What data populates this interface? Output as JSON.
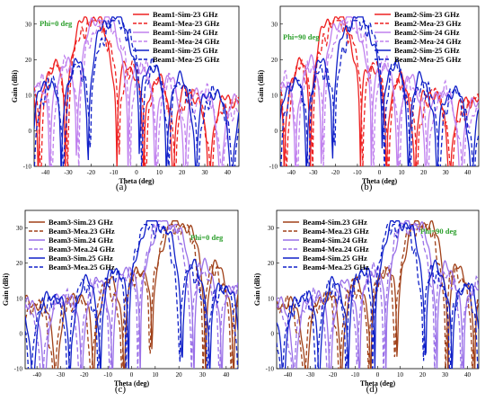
{
  "colors": {
    "sim23": "#ee2020",
    "mea23": "#ee2020",
    "sim24": "#c080ee",
    "mea24": "#c080ee",
    "sim25": "#1020c8",
    "mea25": "#1020c8",
    "sim23_c": "#a04018",
    "mea23_c": "#a04018",
    "sim24_c": "#9a70e8",
    "mea24_c": "#9a70e8",
    "annotation": "#2ea02e"
  },
  "chart_data": [
    {
      "type": "line",
      "caption": "(a)",
      "annotation": "Phi=0 deg",
      "xlabel": "Theta (deg)",
      "ylabel": "Gain (dBi)",
      "xlim": [
        -45,
        45
      ],
      "ylim": [
        -10,
        35
      ],
      "xticks": [
        "-40",
        "-30",
        "-20",
        "-10",
        "0",
        "10",
        "20",
        "30",
        "40"
      ],
      "yticks": [
        "-10",
        "0",
        "10",
        "20",
        "30"
      ],
      "legend_position": "top-right",
      "series": [
        {
          "name": "Beam1-Sim-23 GHz",
          "peak_theta": -20,
          "peak_gain": 32
        },
        {
          "name": "Beam1-Mea-23 GHz",
          "peak_theta": -19,
          "peak_gain": 31
        },
        {
          "name": "Beam1-Sim-24 GHz",
          "peak_theta": -15,
          "peak_gain": 32
        },
        {
          "name": "Beam1-Mea-24 GHz",
          "peak_theta": -14,
          "peak_gain": 31
        },
        {
          "name": "Beam1-Sim-25 GHz",
          "peak_theta": -10,
          "peak_gain": 32
        },
        {
          "name": "Beam1-Mea-25 GHz",
          "peak_theta": -9,
          "peak_gain": 31
        }
      ]
    },
    {
      "type": "line",
      "caption": "(b)",
      "annotation": "Phi=90 deg",
      "xlabel": "Theta (deg)",
      "ylabel": "Gain (dBi)",
      "xlim": [
        -45,
        45
      ],
      "ylim": [
        -10,
        35
      ],
      "xticks": [
        "-40",
        "-30",
        "-20",
        "-10",
        "0",
        "10",
        "20",
        "30",
        "40"
      ],
      "yticks": [
        "-10",
        "0",
        "10",
        "20",
        "30"
      ],
      "legend_position": "top-right",
      "series": [
        {
          "name": "Beam2-Sim-23 GHz",
          "peak_theta": -20,
          "peak_gain": 32
        },
        {
          "name": "Beam2-Mea-23 GHz",
          "peak_theta": -19,
          "peak_gain": 31
        },
        {
          "name": "Beam2-Sim-24 GHz",
          "peak_theta": -15,
          "peak_gain": 32
        },
        {
          "name": "Beam2-Mea-24 GHz",
          "peak_theta": -14,
          "peak_gain": 31
        },
        {
          "name": "Beam2-Sim-25 GHz",
          "peak_theta": -10,
          "peak_gain": 32
        },
        {
          "name": "Beam2-Mea-25 GHz",
          "peak_theta": -9,
          "peak_gain": 31
        }
      ]
    },
    {
      "type": "line",
      "caption": "(c)",
      "annotation": "Phi=0 deg",
      "xlabel": "Theta (deg)",
      "ylabel": "Gain (dBi)",
      "xlim": [
        -45,
        45
      ],
      "ylim": [
        -10,
        35
      ],
      "xticks": [
        "-40",
        "-30",
        "-20",
        "-10",
        "0",
        "10",
        "20",
        "30",
        "40"
      ],
      "yticks": [
        "-10",
        "0",
        "10",
        "20",
        "30"
      ],
      "legend_position": "top-left",
      "series": [
        {
          "name": "Beam3-Sim.23 GHz",
          "peak_theta": 20,
          "peak_gain": 32
        },
        {
          "name": "Beam3-Mea.23 GHz",
          "peak_theta": 19,
          "peak_gain": 31
        },
        {
          "name": "Beam3-Sim.24 GHz",
          "peak_theta": 15,
          "peak_gain": 32
        },
        {
          "name": "Beam3-Mea.24 GHz",
          "peak_theta": 14,
          "peak_gain": 31
        },
        {
          "name": "Beam3-Sim.25 GHz",
          "peak_theta": 10,
          "peak_gain": 32
        },
        {
          "name": "Beam3-Mea.25 GHz",
          "peak_theta": 9,
          "peak_gain": 31
        }
      ]
    },
    {
      "type": "line",
      "caption": "(d)",
      "annotation": "Phi=90 deg",
      "xlabel": "Theta (deg)",
      "ylabel": "Gain (dBi)",
      "xlim": [
        -45,
        45
      ],
      "ylim": [
        -10,
        35
      ],
      "xticks": [
        "-40",
        "-30",
        "-20",
        "-10",
        "0",
        "10",
        "20",
        "30",
        "40"
      ],
      "yticks": [
        "-10",
        "0",
        "10",
        "20",
        "30"
      ],
      "legend_position": "top-left",
      "series": [
        {
          "name": "Beam4-Sim.23 GHz",
          "peak_theta": 20,
          "peak_gain": 32
        },
        {
          "name": "Beam4-Mea.23 GHz",
          "peak_theta": 19,
          "peak_gain": 31
        },
        {
          "name": "Beam4-Sim.24 GHz",
          "peak_theta": 15,
          "peak_gain": 32
        },
        {
          "name": "Beam4-Mea.24 GHz",
          "peak_theta": 14,
          "peak_gain": 31
        },
        {
          "name": "Beam4-Sim.25 GHz",
          "peak_theta": 10,
          "peak_gain": 32
        },
        {
          "name": "Beam4-Mea.25 GHz",
          "peak_theta": 9,
          "peak_gain": 31
        }
      ]
    }
  ]
}
